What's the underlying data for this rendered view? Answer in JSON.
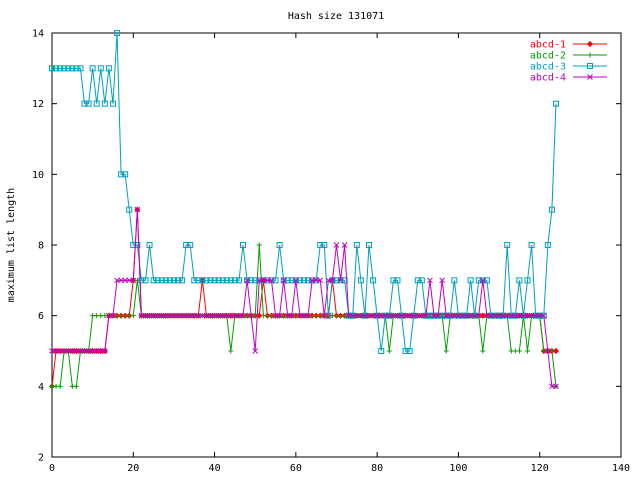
{
  "chart_data": {
    "type": "line",
    "title": "Hash size 131071",
    "xlabel": "",
    "ylabel": "maximum list length",
    "xlim": [
      0,
      140
    ],
    "ylim": [
      2,
      14
    ],
    "xticks": [
      "0",
      "20",
      "40",
      "60",
      "80",
      "100",
      "120",
      "140"
    ],
    "yticks": [
      "2",
      "4",
      "6",
      "8",
      "10",
      "12",
      "14"
    ],
    "grid": false,
    "legend_position": "top-right",
    "series": [
      {
        "name": "abcd-1",
        "color": "#ff0000",
        "marker": "diamond",
        "values": [
          4,
          5,
          5,
          5,
          5,
          5,
          5,
          5,
          5,
          5,
          5,
          5,
          5,
          5,
          6,
          6,
          6,
          6,
          6,
          6,
          7,
          9,
          6,
          6,
          6,
          6,
          6,
          6,
          6,
          6,
          6,
          6,
          6,
          6,
          6,
          6,
          6,
          7,
          6,
          6,
          6,
          6,
          6,
          6,
          6,
          6,
          6,
          6,
          6,
          6,
          6,
          6,
          7,
          6,
          6,
          6,
          6,
          6,
          6,
          6,
          6,
          6,
          6,
          6,
          6,
          6,
          6,
          6,
          6,
          7,
          6,
          6,
          6,
          6,
          6,
          6,
          6,
          6,
          6,
          6,
          6,
          6,
          6,
          6,
          6,
          6,
          6,
          6,
          6,
          6,
          6,
          6,
          6,
          6,
          6,
          6,
          6,
          6,
          6,
          6,
          6,
          6,
          6,
          6,
          6,
          6,
          6,
          6,
          6,
          6,
          6,
          6,
          6,
          6,
          6,
          6,
          6,
          6,
          6,
          6,
          6,
          5,
          5,
          5,
          5
        ]
      },
      {
        "name": "abcd-2",
        "color": "#00a000",
        "marker": "plus",
        "values": [
          4,
          4,
          4,
          5,
          5,
          4,
          4,
          5,
          5,
          5,
          6,
          6,
          6,
          6,
          6,
          6,
          6,
          6,
          6,
          6,
          6,
          7,
          6,
          6,
          6,
          6,
          6,
          6,
          6,
          6,
          6,
          6,
          6,
          6,
          6,
          6,
          6,
          6,
          6,
          6,
          6,
          6,
          6,
          6,
          5,
          6,
          6,
          6,
          6,
          6,
          6,
          8,
          6,
          6,
          6,
          6,
          6,
          6,
          6,
          6,
          6,
          6,
          6,
          6,
          6,
          6,
          6,
          6,
          6,
          6,
          6,
          6,
          6,
          6,
          6,
          6,
          6,
          6,
          6,
          6,
          6,
          6,
          6,
          5,
          6,
          6,
          6,
          6,
          6,
          6,
          6,
          6,
          6,
          6,
          6,
          6,
          6,
          5,
          6,
          6,
          6,
          6,
          6,
          6,
          6,
          6,
          5,
          6,
          6,
          6,
          6,
          6,
          6,
          5,
          5,
          5,
          6,
          5,
          6,
          6,
          6,
          5,
          5,
          5,
          4
        ]
      },
      {
        "name": "abcd-3",
        "color": "#00a0c0",
        "marker": "square",
        "values": [
          13,
          13,
          13,
          13,
          13,
          13,
          13,
          13,
          12,
          12,
          13,
          12,
          13,
          12,
          13,
          12,
          14,
          10,
          10,
          9,
          8,
          8,
          7,
          7,
          8,
          7,
          7,
          7,
          7,
          7,
          7,
          7,
          7,
          8,
          8,
          7,
          7,
          7,
          7,
          7,
          7,
          7,
          7,
          7,
          7,
          7,
          7,
          8,
          7,
          7,
          7,
          7,
          7,
          7,
          7,
          7,
          8,
          7,
          7,
          7,
          7,
          7,
          7,
          7,
          7,
          7,
          8,
          8,
          6,
          7,
          7,
          7,
          7,
          6,
          6,
          8,
          7,
          6,
          8,
          7,
          6,
          5,
          6,
          6,
          7,
          7,
          6,
          5,
          5,
          6,
          7,
          7,
          6,
          6,
          6,
          6,
          6,
          6,
          6,
          7,
          6,
          6,
          6,
          7,
          6,
          7,
          7,
          7,
          6,
          6,
          6,
          6,
          8,
          6,
          6,
          7,
          6,
          7,
          8,
          6,
          6,
          6,
          8,
          9,
          12
        ]
      },
      {
        "name": "abcd-4",
        "color": "#c000c0",
        "marker": "cross",
        "values": [
          5,
          5,
          5,
          5,
          5,
          5,
          5,
          5,
          5,
          5,
          5,
          5,
          5,
          5,
          6,
          6,
          7,
          7,
          7,
          7,
          7,
          9,
          6,
          6,
          6,
          6,
          6,
          6,
          6,
          6,
          6,
          6,
          6,
          6,
          6,
          6,
          6,
          6,
          6,
          6,
          6,
          6,
          6,
          6,
          6,
          6,
          6,
          6,
          7,
          6,
          5,
          7,
          7,
          7,
          7,
          6,
          6,
          7,
          6,
          6,
          7,
          6,
          6,
          6,
          7,
          7,
          7,
          6,
          7,
          7,
          8,
          7,
          8,
          6,
          6,
          6,
          6,
          6,
          6,
          6,
          6,
          6,
          6,
          6,
          6,
          6,
          6,
          6,
          6,
          6,
          6,
          6,
          6,
          7,
          6,
          6,
          7,
          6,
          6,
          6,
          6,
          6,
          6,
          6,
          6,
          6,
          7,
          6,
          6,
          6,
          6,
          6,
          6,
          6,
          6,
          6,
          6,
          6,
          6,
          6,
          6,
          6,
          5,
          4,
          4
        ]
      }
    ]
  }
}
